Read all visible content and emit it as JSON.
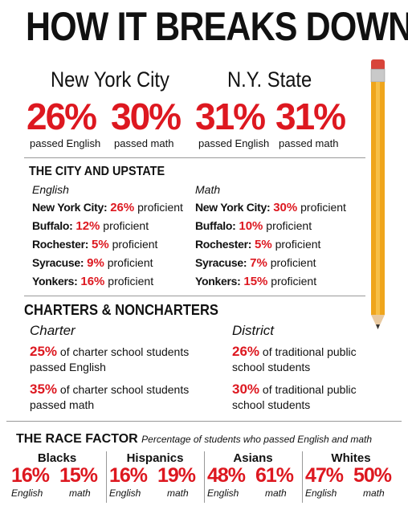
{
  "title": "HOW IT BREAKS DOWN",
  "top": {
    "groups": [
      {
        "name": "New York City",
        "stats": [
          {
            "value": "26%",
            "label": "passed English"
          },
          {
            "value": "30%",
            "label": "passed math"
          }
        ]
      },
      {
        "name": "N.Y. State",
        "stats": [
          {
            "value": "31%",
            "label": "passed English"
          },
          {
            "value": "31%",
            "label": "passed math"
          }
        ]
      }
    ]
  },
  "city_upstate": {
    "heading": "THE CITY AND UPSTATE",
    "columns": [
      {
        "subject": "English",
        "rows": [
          {
            "place": "New York City:",
            "value": "26%",
            "suffix": "proficient"
          },
          {
            "place": "Buffalo:",
            "value": "12%",
            "suffix": "proficient"
          },
          {
            "place": "Rochester:",
            "value": "5%",
            "suffix": "proficient"
          },
          {
            "place": "Syracuse:",
            "value": "9%",
            "suffix": "proficient"
          },
          {
            "place": "Yonkers:",
            "value": "16%",
            "suffix": "proficient"
          }
        ]
      },
      {
        "subject": "Math",
        "rows": [
          {
            "place": "New York City:",
            "value": "30%",
            "suffix": "proficient"
          },
          {
            "place": "Buffalo:",
            "value": "10%",
            "suffix": "proficient"
          },
          {
            "place": "Rochester:",
            "value": "5%",
            "suffix": "proficient"
          },
          {
            "place": "Syracuse:",
            "value": "7%",
            "suffix": "proficient"
          },
          {
            "place": "Yonkers:",
            "value": "15%",
            "suffix": "proficient"
          }
        ]
      }
    ]
  },
  "charters": {
    "heading": "CHARTERS & NONCHARTERS",
    "columns": [
      {
        "label": "Charter",
        "items": [
          {
            "value": "25%",
            "text": "of charter school students passed English"
          },
          {
            "value": "35%",
            "text": "of charter school students passed math"
          }
        ]
      },
      {
        "label": "District",
        "items": [
          {
            "value": "26%",
            "text": "of traditional public school students"
          },
          {
            "value": "30%",
            "text": "of traditional public school students"
          }
        ]
      }
    ]
  },
  "race": {
    "heading": "THE RACE FACTOR",
    "subtitle": "Percentage of students who passed English and math",
    "groups": [
      {
        "name": "Blacks",
        "english": "16%",
        "english_label": "English",
        "math": "15%",
        "math_label": "math"
      },
      {
        "name": "Hispanics",
        "english": "16%",
        "english_label": "English",
        "math": "19%",
        "math_label": "math"
      },
      {
        "name": "Asians",
        "english": "48%",
        "english_label": "English",
        "math": "61%",
        "math_label": "math"
      },
      {
        "name": "Whites",
        "english": "47%",
        "english_label": "English",
        "math": "50%",
        "math_label": "math"
      }
    ]
  }
}
